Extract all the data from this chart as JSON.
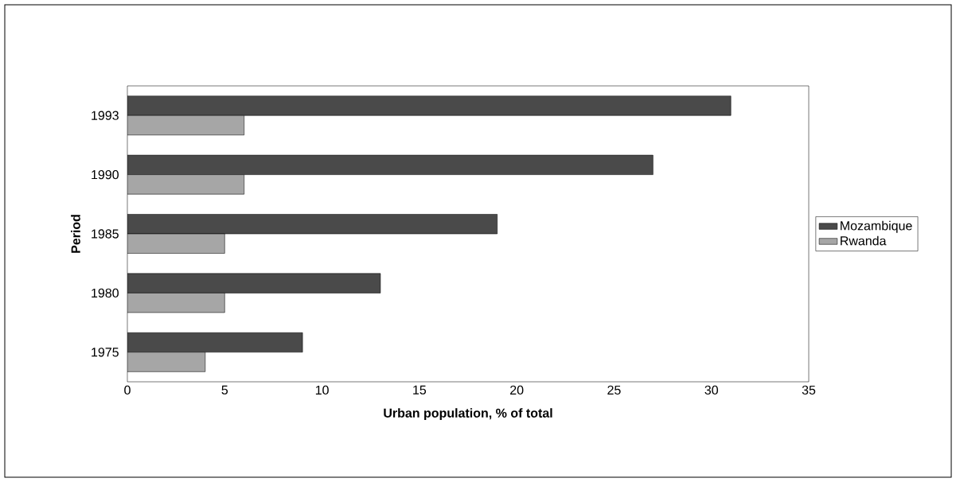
{
  "chart_data": {
    "type": "bar",
    "orientation": "horizontal",
    "xlabel": "Urban population, % of total",
    "ylabel": "Period",
    "categories": [
      "1993",
      "1990",
      "1985",
      "1980",
      "1975"
    ],
    "series": [
      {
        "name": "Mozambique",
        "color": "#4a4a4a",
        "values": [
          31,
          27,
          19,
          13,
          9
        ]
      },
      {
        "name": "Rwanda",
        "color": "#a6a6a6",
        "values": [
          6,
          6,
          5,
          5,
          4
        ]
      }
    ],
    "xlim": [
      0,
      35
    ],
    "xticks": [
      0,
      5,
      10,
      15,
      20,
      25,
      30,
      35
    ],
    "grid": false,
    "legend": "right"
  }
}
